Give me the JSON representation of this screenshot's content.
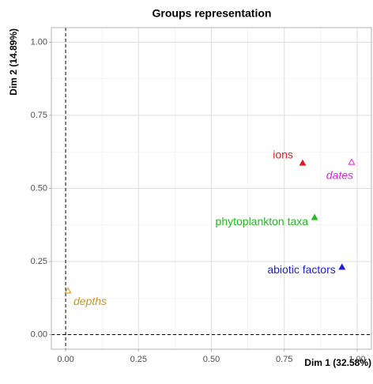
{
  "chart_data": {
    "type": "scatter",
    "title": "Groups representation",
    "xlabel": "Dim 1 (32.58%)",
    "ylabel": "Dim 2 (14.89%)",
    "xlim": [
      -0.049,
      1.049
    ],
    "ylim": [
      -0.05,
      1.05
    ],
    "xticks": [
      {
        "value": 0,
        "label": "0.00"
      },
      {
        "value": 0.25,
        "label": "0.25"
      },
      {
        "value": 0.5,
        "label": "0.50"
      },
      {
        "value": 0.75,
        "label": "0.75"
      },
      {
        "value": 1,
        "label": "1.00"
      }
    ],
    "yticks": [
      {
        "value": 0,
        "label": "0.00"
      },
      {
        "value": 0.25,
        "label": "0.25"
      },
      {
        "value": 0.5,
        "label": "0.50"
      },
      {
        "value": 0.75,
        "label": "0.75"
      },
      {
        "value": 1,
        "label": "1.00"
      }
    ],
    "grid": true,
    "hline": 0,
    "vline": 0,
    "series": [
      {
        "name": "ions",
        "color": "#e41a1c",
        "marker": "filled",
        "style": "normal",
        "x": [
          0.813
        ],
        "values": [
          0.586
        ]
      },
      {
        "name": "dates",
        "color": "#e31ee3",
        "marker": "open",
        "style": "italic",
        "x": [
          0.981
        ],
        "values": [
          0.589
        ]
      },
      {
        "name": "phytoplankton taxa",
        "color": "#1fbf1f",
        "marker": "filled",
        "style": "normal",
        "x": [
          0.854
        ],
        "values": [
          0.4
        ]
      },
      {
        "name": "abiotic factors",
        "color": "#1f1fd6",
        "marker": "filled",
        "style": "normal",
        "x": [
          0.948
        ],
        "values": [
          0.23
        ]
      },
      {
        "name": "depths",
        "color": "#c8961e",
        "marker": "open",
        "style": "italic",
        "x": [
          0.008
        ],
        "values": [
          0.149
        ]
      }
    ]
  }
}
